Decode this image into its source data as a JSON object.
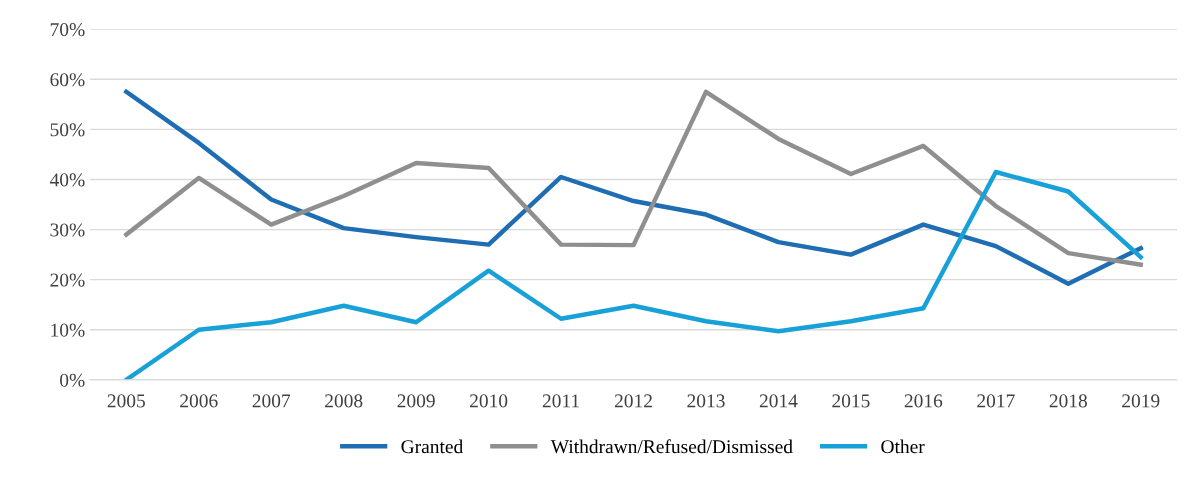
{
  "chart_data": {
    "type": "line",
    "categories": [
      "2005",
      "2006",
      "2007",
      "2008",
      "2009",
      "2010",
      "2011",
      "2012",
      "2013",
      "2014",
      "2015",
      "2016",
      "2017",
      "2018",
      "2019"
    ],
    "series": [
      {
        "name": "Granted",
        "color": "#1f6db3",
        "values": [
          57.5,
          47.3,
          36,
          30.3,
          28.5,
          27,
          40.5,
          35.7,
          33,
          27.5,
          25,
          31,
          26.7,
          19.2,
          26.3
        ]
      },
      {
        "name": "Withdrawn/Refused/Dismissed",
        "color": "#8f8f8f",
        "values": [
          29,
          40.3,
          31,
          36.7,
          43.3,
          42.3,
          27,
          26.9,
          57.5,
          48.1,
          41.1,
          46.7,
          34.7,
          25.3,
          23
        ]
      },
      {
        "name": "Other",
        "color": "#18a0d8",
        "values": [
          0,
          10,
          11.5,
          14.8,
          11.5,
          21.8,
          12.2,
          14.8,
          11.7,
          9.7,
          11.7,
          14.3,
          41.5,
          37.6,
          24.5
        ]
      }
    ],
    "ylim": [
      0,
      70
    ],
    "yticks": [
      {
        "value": 0,
        "label": "0%"
      },
      {
        "value": 10,
        "label": "10%"
      },
      {
        "value": 20,
        "label": "20%"
      },
      {
        "value": 30,
        "label": "30%"
      },
      {
        "value": 40,
        "label": "40%"
      },
      {
        "value": 50,
        "label": "50%"
      },
      {
        "value": 60,
        "label": "60%"
      },
      {
        "value": 70,
        "label": "70%"
      }
    ],
    "grid": "y",
    "legend": "bottom",
    "marker": "none",
    "line_style": "solid"
  }
}
